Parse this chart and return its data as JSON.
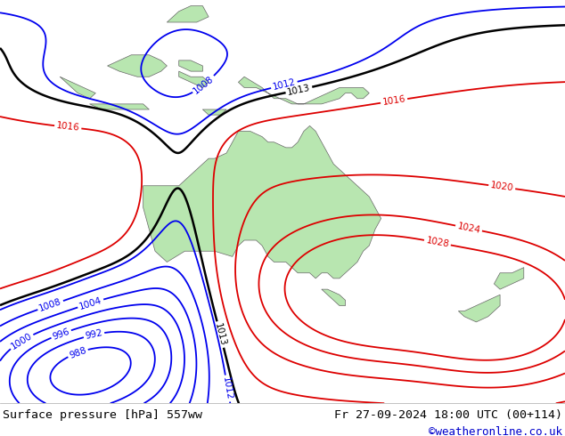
{
  "title_left": "Surface pressure [hPa] 557ww",
  "title_right": "Fr 27-09-2024 18:00 UTC (00+114)",
  "credit": "©weatheronline.co.uk",
  "land_color": "#b8e6b0",
  "ocean_color": "#d0d0d8",
  "bottom_bar_color": "#ffffff",
  "title_fontsize": 9.5,
  "credit_color": "#0000cc",
  "figsize": [
    6.34,
    4.9
  ],
  "dpi": 100,
  "map_extent": [
    90,
    185,
    -62,
    12
  ],
  "contours": {
    "black_levels": [
      1013
    ],
    "blue_levels": [
      988,
      992,
      996,
      1000,
      1004,
      1008,
      1012
    ],
    "red_levels": [
      1016,
      1020,
      1024,
      1028
    ],
    "black_color": "#000000",
    "blue_color": "#0000ee",
    "red_color": "#dd0000",
    "black_lw": 1.8,
    "color_lw": 1.3
  }
}
